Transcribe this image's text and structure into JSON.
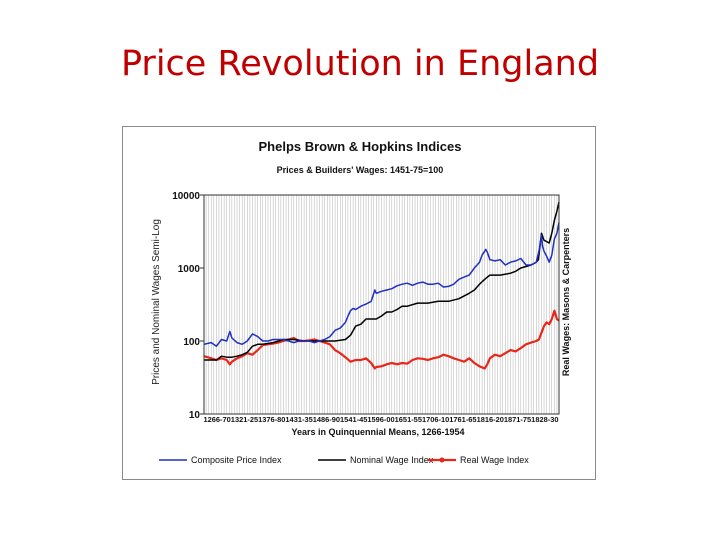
{
  "slide": {
    "title": "Price Revolution in England"
  },
  "chart_data": {
    "type": "line",
    "title": "Phelps Brown & Hopkins Indices",
    "subtitle": "Prices & Builders' Wages: 1451-75=100",
    "xlabel": "Years in Quinquennial Means, 1266-1954",
    "ylabel": "Prices and Nominal Wages Semi-Log",
    "y2label": "Real Wages: Masons & Carpenters",
    "yscale": "log",
    "xlim": [
      1266,
      1954
    ],
    "ylim": [
      10,
      10000
    ],
    "yticks": [
      10,
      100,
      1000,
      10000
    ],
    "grid": true,
    "legend_position": "bottom",
    "xtick_labels": "1266-701321-251376-801431-351486-901541-451596-001651-551706-101761-651816-201871-751828-30",
    "series": [
      {
        "name": "Composite Price Index",
        "color": "#1f2fc0",
        "x": [
          1266,
          1280,
          1290,
          1300,
          1310,
          1316,
          1320,
          1330,
          1340,
          1350,
          1360,
          1370,
          1380,
          1390,
          1400,
          1410,
          1420,
          1430,
          1440,
          1450,
          1460,
          1470,
          1480,
          1490,
          1500,
          1510,
          1520,
          1530,
          1540,
          1545,
          1550,
          1555,
          1560,
          1570,
          1580,
          1590,
          1597,
          1600,
          1610,
          1620,
          1630,
          1640,
          1650,
          1660,
          1670,
          1680,
          1690,
          1700,
          1710,
          1720,
          1730,
          1740,
          1750,
          1760,
          1770,
          1780,
          1790,
          1800,
          1805,
          1810,
          1812,
          1815,
          1820,
          1830,
          1840,
          1850,
          1860,
          1870,
          1880,
          1890,
          1900,
          1910,
          1915,
          1920,
          1922,
          1925,
          1930,
          1935,
          1940,
          1945,
          1950,
          1954
        ],
        "values": [
          90,
          95,
          85,
          105,
          100,
          135,
          110,
          95,
          90,
          100,
          125,
          115,
          100,
          100,
          105,
          105,
          105,
          100,
          95,
          100,
          100,
          100,
          95,
          100,
          105,
          115,
          140,
          150,
          180,
          220,
          260,
          280,
          270,
          300,
          320,
          350,
          500,
          450,
          480,
          500,
          520,
          570,
          600,
          620,
          580,
          620,
          640,
          600,
          600,
          620,
          550,
          560,
          600,
          700,
          750,
          800,
          1000,
          1200,
          1500,
          1700,
          1800,
          1650,
          1300,
          1250,
          1300,
          1100,
          1200,
          1250,
          1350,
          1100,
          1100,
          1200,
          1700,
          2800,
          2000,
          1700,
          1450,
          1200,
          1500,
          2500,
          3000,
          4200
        ]
      },
      {
        "name": "Nominal Wage Index",
        "color": "#000000",
        "x": [
          1266,
          1290,
          1300,
          1310,
          1320,
          1330,
          1340,
          1350,
          1360,
          1370,
          1380,
          1400,
          1420,
          1440,
          1460,
          1480,
          1500,
          1520,
          1540,
          1550,
          1560,
          1570,
          1580,
          1590,
          1600,
          1610,
          1620,
          1630,
          1640,
          1650,
          1660,
          1680,
          1700,
          1720,
          1740,
          1760,
          1780,
          1790,
          1800,
          1810,
          1820,
          1840,
          1860,
          1870,
          1880,
          1890,
          1900,
          1910,
          1914,
          1920,
          1925,
          1930,
          1935,
          1940,
          1945,
          1950,
          1954
        ],
        "values": [
          55,
          55,
          62,
          60,
          60,
          62,
          65,
          70,
          85,
          90,
          90,
          95,
          105,
          105,
          100,
          100,
          100,
          100,
          105,
          120,
          160,
          170,
          200,
          200,
          200,
          220,
          250,
          250,
          270,
          300,
          300,
          330,
          330,
          350,
          350,
          380,
          450,
          500,
          600,
          700,
          800,
          800,
          850,
          900,
          1000,
          1050,
          1100,
          1200,
          1300,
          3000,
          2400,
          2300,
          2200,
          3000,
          4500,
          6000,
          8000
        ]
      },
      {
        "name": "Real Wage Index",
        "color": "#e8271b",
        "x": [
          1266,
          1280,
          1290,
          1300,
          1310,
          1316,
          1320,
          1330,
          1340,
          1350,
          1360,
          1370,
          1380,
          1390,
          1400,
          1410,
          1420,
          1430,
          1440,
          1450,
          1460,
          1470,
          1480,
          1490,
          1500,
          1510,
          1520,
          1530,
          1540,
          1550,
          1560,
          1570,
          1580,
          1590,
          1597,
          1600,
          1610,
          1620,
          1630,
          1640,
          1650,
          1660,
          1670,
          1680,
          1690,
          1700,
          1710,
          1720,
          1730,
          1740,
          1750,
          1760,
          1770,
          1780,
          1790,
          1800,
          1810,
          1815,
          1820,
          1830,
          1840,
          1850,
          1860,
          1870,
          1880,
          1890,
          1900,
          1910,
          1915,
          1920,
          1925,
          1930,
          1935,
          1940,
          1945,
          1950,
          1954
        ],
        "values": [
          62,
          58,
          55,
          58,
          55,
          48,
          52,
          58,
          62,
          68,
          65,
          75,
          88,
          90,
          92,
          95,
          100,
          105,
          110,
          100,
          100,
          102,
          105,
          100,
          95,
          90,
          75,
          68,
          60,
          52,
          55,
          55,
          58,
          50,
          42,
          44,
          45,
          48,
          50,
          48,
          50,
          49,
          55,
          58,
          57,
          55,
          58,
          60,
          65,
          62,
          58,
          55,
          52,
          58,
          50,
          45,
          42,
          48,
          58,
          65,
          62,
          68,
          75,
          72,
          80,
          90,
          95,
          100,
          105,
          130,
          160,
          180,
          170,
          200,
          260,
          200,
          190
        ]
      }
    ]
  }
}
